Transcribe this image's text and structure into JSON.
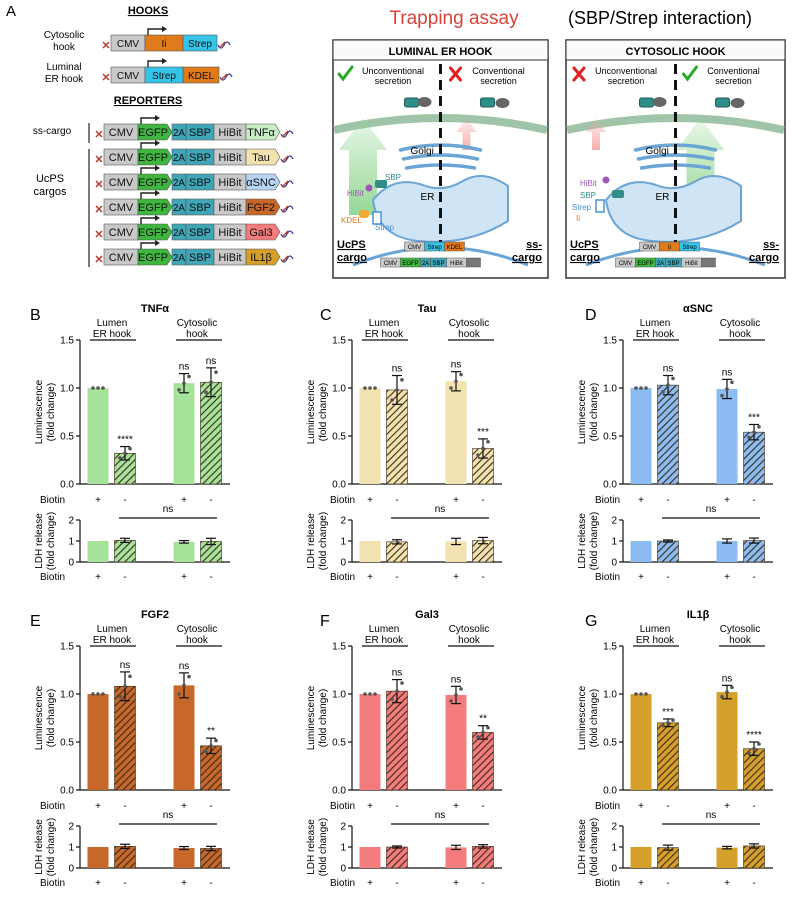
{
  "colors": {
    "tnfa": "#a6e29a",
    "tau": "#f2e2b0",
    "asnc": "#8cbcf2",
    "fgf2": "#c8672a",
    "gal3": "#f47c7c",
    "il1b": "#d4a02a",
    "cmv": "#c9c9c9",
    "ii": "#e07a1a",
    "strep": "#35c4e8",
    "kdel": "#e07a1a",
    "egfp": "#3fb63f",
    "sbp": "#3fa6b8",
    "hibit": "#c9c9c9",
    "er": "#cfe4f5",
    "check": "#2aa82a",
    "cross": "#e02020",
    "title_red": "#d9443a"
  },
  "panel_a": {
    "letter": "A",
    "hooks_title": "HOOKS",
    "cytosolic_hook_label": [
      "Cytosolic",
      "hook"
    ],
    "luminal_hook_label": [
      "Luminal",
      "ER hook"
    ],
    "reporters_title": "REPORTERS",
    "ss_cargo_label": "ss-cargo",
    "ucps_label": [
      "UcPS",
      "cargos"
    ],
    "cmv": "CMV",
    "ii": "Ii",
    "strep": "Strep",
    "kdel": "KDEL",
    "egfp": "EGFP",
    "twoa": "2A",
    "sbp": "SBP",
    "hibit": "HiBit",
    "cargos": [
      "TNFα",
      "Tau",
      "αSNC",
      "FGF2",
      "Gal3",
      "IL1β"
    ],
    "trapping_title": "Trapping assay",
    "trapping_subtitle": "(SBP/Strep interaction)",
    "luminal_box": {
      "title": "LUMINAL ER HOOK",
      "left_status": [
        "Unconventional",
        "secretion"
      ],
      "right_status": [
        "Conventional",
        "secretion"
      ],
      "golgi": "Golgi",
      "er": "ER",
      "hibit": "HiBit",
      "sbp": "SBP",
      "kdel": "KDEL",
      "strep": "Strep",
      "left_cargo": [
        "UcPS",
        "cargo"
      ],
      "right_cargo": [
        "ss-",
        "cargo"
      ]
    },
    "cytosolic_box": {
      "title": "CYTOSOLIC  HOOK",
      "left_status": [
        "Unconventional",
        "secretion"
      ],
      "right_status": [
        "Conventional",
        "secretion"
      ],
      "golgi": "Golgi",
      "er": "ER",
      "hibit": "HiBit",
      "sbp": "SBP",
      "strep": "Strep",
      "ii": "Ii",
      "left_cargo": [
        "UcPS",
        "cargo"
      ],
      "right_cargo": [
        "ss-",
        "cargo"
      ]
    }
  },
  "common": {
    "lumen_label": [
      "Lumen",
      "ER hook"
    ],
    "cytosolic_label": [
      "Cytosolic",
      "hook"
    ],
    "lum_ylabel": [
      "Luminescence",
      "(fold change)"
    ],
    "ldh_ylabel": [
      "LDH release",
      "(fold change)"
    ],
    "biotin": "Biotin",
    "biotin_signs": [
      "+",
      "-",
      "+",
      "-"
    ],
    "ldh_sig": "ns"
  },
  "chart_data": [
    {
      "letter": "B",
      "type": "bar",
      "title": "TNFα",
      "colorKey": "tnfa",
      "ylim": [
        0,
        1.5
      ],
      "ticks": [
        0.0,
        0.5,
        1.0,
        1.5
      ],
      "values": [
        1.0,
        0.32,
        1.05,
        1.06
      ],
      "errors": [
        0,
        0.07,
        0.1,
        0.15
      ],
      "sig": [
        "",
        "****",
        "ns",
        "ns"
      ],
      "ldh_ylim": [
        0,
        2
      ],
      "ldh_ticks": [
        0,
        1,
        2
      ],
      "ldh_values": [
        1.0,
        1.03,
        0.96,
        0.98
      ],
      "ldh_errors": [
        0,
        0.1,
        0.06,
        0.15
      ]
    },
    {
      "letter": "C",
      "type": "bar",
      "title": "Tau",
      "colorKey": "tau",
      "ylim": [
        0,
        1.5
      ],
      "ticks": [
        0.0,
        0.5,
        1.0,
        1.5
      ],
      "values": [
        1.0,
        0.98,
        1.07,
        0.37
      ],
      "errors": [
        0,
        0.15,
        0.1,
        0.1
      ],
      "sig": [
        "",
        "ns",
        "ns",
        "***"
      ],
      "ldh_ylim": [
        0,
        2
      ],
      "ldh_ticks": [
        0,
        1,
        2
      ],
      "ldh_values": [
        1.0,
        0.96,
        0.98,
        1.02
      ],
      "ldh_errors": [
        0,
        0.1,
        0.15,
        0.15
      ]
    },
    {
      "letter": "D",
      "type": "bar",
      "title": "αSNC",
      "colorKey": "asnc",
      "ylim": [
        0,
        1.5
      ],
      "ticks": [
        0.0,
        0.5,
        1.0,
        1.5
      ],
      "values": [
        1.0,
        1.03,
        0.99,
        0.54
      ],
      "errors": [
        0,
        0.1,
        0.1,
        0.08
      ],
      "sig": [
        "",
        "ns",
        "ns",
        "***"
      ],
      "ldh_ylim": [
        0,
        2
      ],
      "ldh_ticks": [
        0,
        1,
        2
      ],
      "ldh_values": [
        1.0,
        1.0,
        1.0,
        1.02
      ],
      "ldh_errors": [
        0,
        0.05,
        0.1,
        0.12
      ]
    },
    {
      "letter": "E",
      "type": "bar",
      "title": "FGF2",
      "colorKey": "fgf2",
      "ylim": [
        0,
        1.5
      ],
      "ticks": [
        0.0,
        0.5,
        1.0,
        1.5
      ],
      "values": [
        1.0,
        1.08,
        1.09,
        0.46
      ],
      "errors": [
        0,
        0.15,
        0.13,
        0.08
      ],
      "sig": [
        "",
        "ns",
        "ns",
        "**"
      ],
      "ldh_ylim": [
        0,
        2
      ],
      "ldh_ticks": [
        0,
        1,
        2
      ],
      "ldh_values": [
        1.0,
        1.03,
        0.95,
        0.93
      ],
      "ldh_errors": [
        0,
        0.1,
        0.07,
        0.1
      ]
    },
    {
      "letter": "F",
      "type": "bar",
      "title": "Gal3",
      "colorKey": "gal3",
      "ylim": [
        0,
        1.5
      ],
      "ticks": [
        0.0,
        0.5,
        1.0,
        1.5
      ],
      "values": [
        1.0,
        1.03,
        0.99,
        0.6
      ],
      "errors": [
        0,
        0.12,
        0.09,
        0.07
      ],
      "sig": [
        "",
        "ns",
        "ns",
        "**"
      ],
      "ldh_ylim": [
        0,
        2
      ],
      "ldh_ticks": [
        0,
        1,
        2
      ],
      "ldh_values": [
        1.0,
        1.0,
        0.98,
        1.03
      ],
      "ldh_errors": [
        0,
        0.05,
        0.1,
        0.08
      ]
    },
    {
      "letter": "G",
      "type": "bar",
      "title": "IL1β",
      "colorKey": "il1b",
      "ylim": [
        0,
        1.5
      ],
      "ticks": [
        0.0,
        0.5,
        1.0,
        1.5
      ],
      "values": [
        1.0,
        0.7,
        1.02,
        0.43
      ],
      "errors": [
        0,
        0.04,
        0.07,
        0.07
      ],
      "sig": [
        "",
        "***",
        "ns",
        "****"
      ],
      "ldh_ylim": [
        0,
        2
      ],
      "ldh_ticks": [
        0,
        1,
        2
      ],
      "ldh_values": [
        1.0,
        0.97,
        0.97,
        1.05
      ],
      "ldh_errors": [
        0,
        0.12,
        0.06,
        0.1
      ]
    }
  ]
}
